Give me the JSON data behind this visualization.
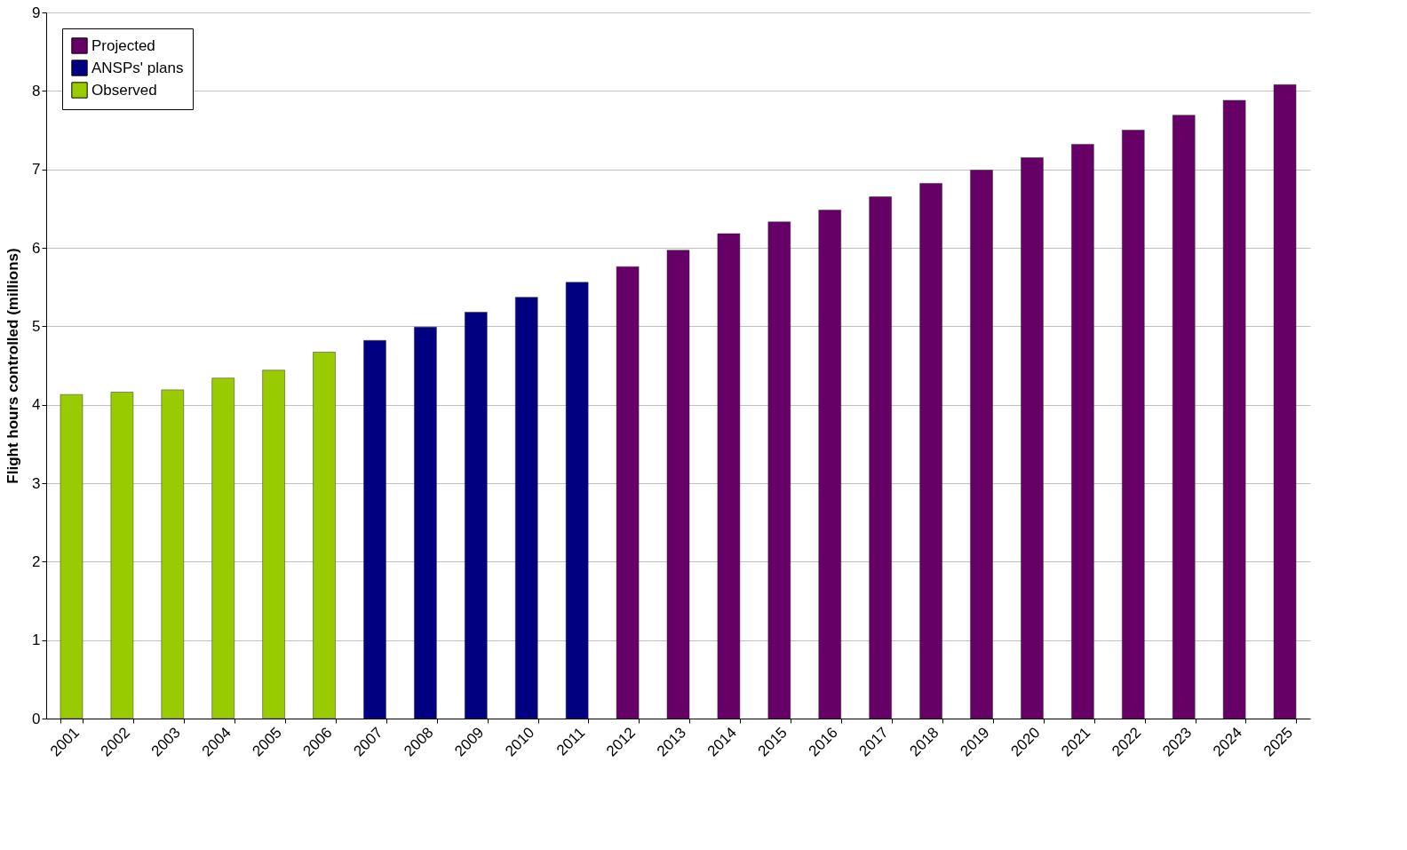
{
  "chart_data": {
    "type": "bar",
    "ylabel": "Flight hours controlled (millions)",
    "categories": [
      "2001",
      "2002",
      "2003",
      "2004",
      "2005",
      "2006",
      "2007",
      "2008",
      "2009",
      "2010",
      "2011",
      "2012",
      "2013",
      "2014",
      "2015",
      "2016",
      "2017",
      "2018",
      "2019",
      "2020",
      "2021",
      "2022",
      "2023",
      "2024",
      "2025"
    ],
    "series": [
      {
        "name": "Projected",
        "color": "#660066",
        "values": [
          null,
          null,
          null,
          null,
          null,
          null,
          null,
          null,
          null,
          null,
          null,
          5.76,
          5.97,
          6.18,
          6.33,
          6.48,
          6.65,
          6.82,
          6.99,
          7.15,
          7.32,
          7.5,
          7.69,
          7.88,
          8.08
        ]
      },
      {
        "name": "ANSPs' plans",
        "color": "#000080",
        "values": [
          null,
          null,
          null,
          null,
          null,
          null,
          4.82,
          4.99,
          5.18,
          5.37,
          5.56,
          null,
          null,
          null,
          null,
          null,
          null,
          null,
          null,
          null,
          null,
          null,
          null,
          null,
          null
        ]
      },
      {
        "name": "Observed",
        "color": "#99cc00",
        "values": [
          4.13,
          4.16,
          4.19,
          4.34,
          4.44,
          4.67,
          null,
          null,
          null,
          null,
          null,
          null,
          null,
          null,
          null,
          null,
          null,
          null,
          null,
          null,
          null,
          null,
          null,
          null,
          null
        ]
      }
    ],
    "ylim": [
      0,
      9
    ],
    "yticks": [
      0,
      1,
      2,
      3,
      4,
      5,
      6,
      7,
      8,
      9
    ],
    "grid": "y",
    "legend": "top left"
  }
}
